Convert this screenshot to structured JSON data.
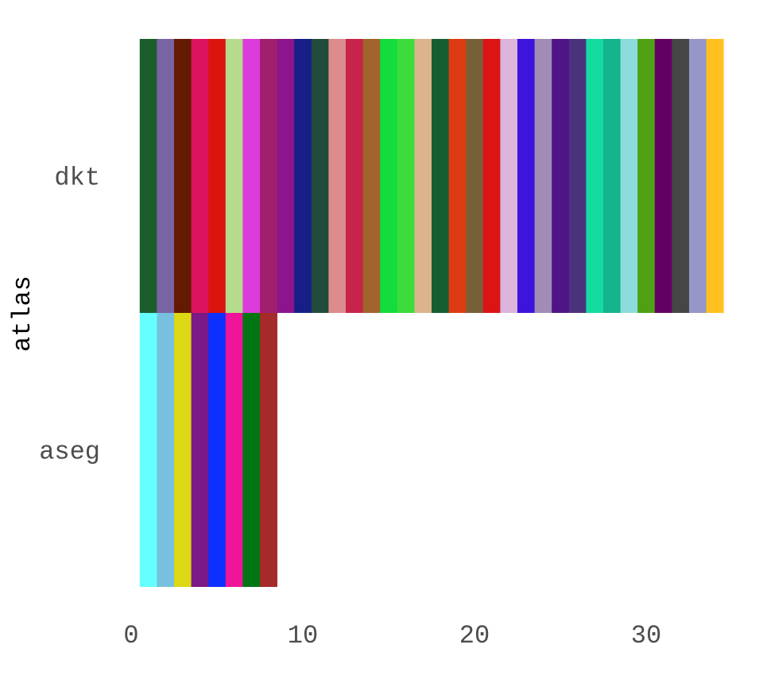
{
  "chart_data": {
    "type": "bar",
    "orientation": "horizontal",
    "stacked": true,
    "ylabel": "atlas",
    "xlabel": "",
    "categories": [
      "dkt",
      "aseg"
    ],
    "xlim": [
      0,
      34.5
    ],
    "xticks": [
      0,
      10,
      20,
      30
    ],
    "grid": false,
    "legend": "none",
    "segment_value": 1,
    "series": [
      {
        "category": "dkt",
        "segment_colors": [
          "#1b5e2b",
          "#7b64a3",
          "#641a00",
          "#dc1460",
          "#dc140e",
          "#b4dc8c",
          "#dc3cdc",
          "#a0206e",
          "#8c148c",
          "#181e88",
          "#214c3b",
          "#dc8c8c",
          "#c8234b",
          "#a0642c",
          "#14dc3c",
          "#3cdc3c",
          "#dcb48c",
          "#145e32",
          "#dc3c14",
          "#786036",
          "#dc1414",
          "#dcb4dc",
          "#3c14dc",
          "#a08cb4",
          "#501488",
          "#4b327d",
          "#14dca0",
          "#14b48c",
          "#8cdcdc",
          "#50a014",
          "#640064",
          "#464646",
          "#9696c8",
          "#ffc020"
        ]
      },
      {
        "category": "aseg",
        "segment_colors": [
          "#66ffff",
          "#77c0df",
          "#dcd814",
          "#7a1a86",
          "#0c30ff",
          "#f0149a",
          "#007613",
          "#a52a2a"
        ]
      }
    ]
  }
}
